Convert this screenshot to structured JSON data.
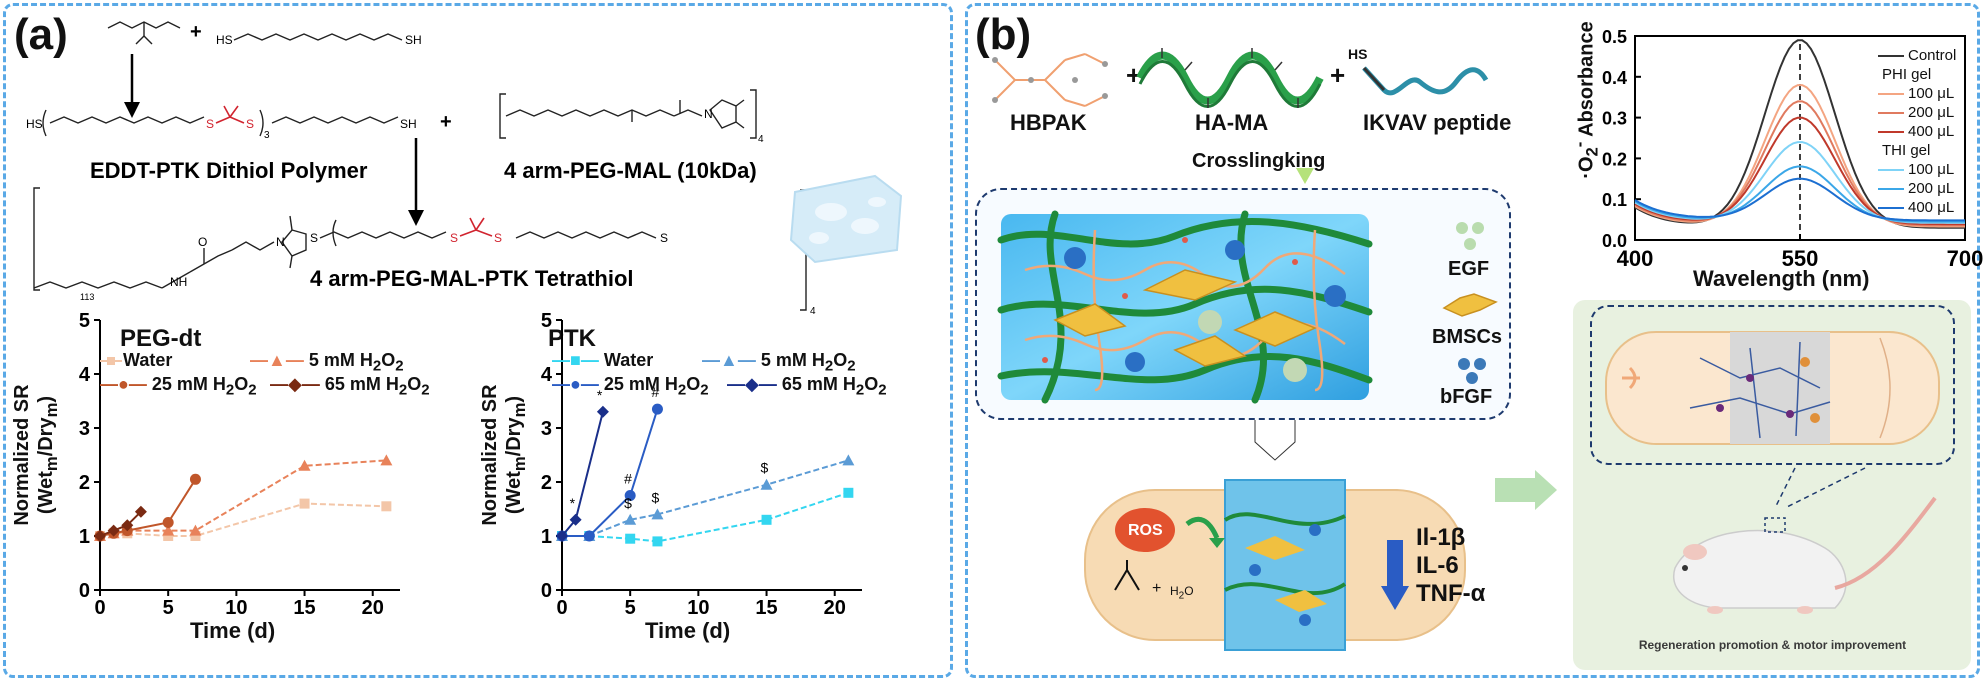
{
  "panel_a": {
    "label": "(a)",
    "chem": {
      "sh": "SH",
      "hs": "HS",
      "plus": "+",
      "s": "S",
      "o": "O",
      "n": "N",
      "nh": "NH",
      "sub3": "3",
      "sub4": "4",
      "sub113": "113",
      "polymer_label": "EDDT-PTK Dithiol Polymer",
      "peg_mal_label": "4 arm-PEG-MAL (10kDa)",
      "product_label": "4 arm-PEG-MAL-PTK Tetrathiol"
    },
    "chart_left": {
      "title": "PEG-dt",
      "ylabel_line1": "Normalized SR",
      "ylabel_line2": "(Wet",
      "ylabel_sub1": "m",
      "ylabel_mid": "/Dry",
      "ylabel_sub2": "m",
      "ylabel_end": ")",
      "xlabel": "Time (d)",
      "legend": {
        "water": "Water",
        "h5": "5 mM H",
        "h25": "25 mM H",
        "h65": "65 mM H",
        "sub2": "2",
        "o2": "O",
        "sub2b": "2"
      }
    },
    "chart_right": {
      "title": "PTK",
      "ylabel_line1": "Normalized SR",
      "ylabel_line2": "(Wet",
      "ylabel_sub1": "m",
      "ylabel_mid": "/Dry",
      "ylabel_sub2": "m",
      "ylabel_end": ")",
      "xlabel": "Time (d)",
      "legend": {
        "water": "Water",
        "h5": "5 mM H",
        "h25": "25 mM H",
        "h65": "65 mM H",
        "sub2": "2",
        "o2": "O",
        "sub2b": "2"
      },
      "annotations": {
        "star": "*",
        "hash": "#",
        "dollar": "$"
      }
    }
  },
  "panel_b": {
    "label": "(b)",
    "hbpak": "HBPAK",
    "hama": "HA-MA",
    "plus": "+",
    "hs": "HS",
    "ikvav": "IKVAV peptide",
    "crosslinking": "Crosslingking",
    "legend_egf": "EGF",
    "legend_bmsc": "BMSCs",
    "legend_bfgf": "bFGF",
    "ros": "ROS",
    "il1b": "Il-1β",
    "il6": "IL-6",
    "tnfa": "TNF-α",
    "h2o": "H",
    "h2o_sub": "2",
    "h2o_o": "O",
    "regen_caption": "Regeneration promotion & motor improvement",
    "abs_chart": {
      "ylabel": "·O",
      "ylabel_sub": "2",
      "ylabel_sup": "-",
      "ylabel_rest": " Absorbance",
      "xlabel": "Wavelength (nm)",
      "legend_control": "Control",
      "legend_phi": "PHI gel",
      "legend_thi": "THI gel",
      "l100": "100 μL",
      "l200": "200 μL",
      "l400": "400 μL"
    }
  },
  "chart_data": [
    {
      "type": "line",
      "title": "PEG-dt",
      "xlabel": "Time (d)",
      "ylabel": "Normalized SR (Wetm/Drym)",
      "xlim": [
        0,
        22
      ],
      "ylim": [
        0,
        5
      ],
      "xticks": [
        0,
        5,
        10,
        15,
        20
      ],
      "yticks": [
        0,
        1,
        2,
        3,
        4,
        5
      ],
      "series": [
        {
          "name": "Water",
          "color": "#f3c6a8",
          "x": [
            0,
            1,
            2,
            5,
            7,
            15,
            21
          ],
          "y": [
            1.0,
            1.05,
            1.05,
            1.0,
            1.0,
            1.6,
            1.55
          ]
        },
        {
          "name": "5 mM H2O2",
          "color": "#e8825a",
          "x": [
            0,
            1,
            2,
            5,
            7,
            15,
            21
          ],
          "y": [
            1.0,
            1.05,
            1.1,
            1.1,
            1.1,
            2.3,
            2.4
          ]
        },
        {
          "name": "25 mM H2O2",
          "color": "#c0562a",
          "x": [
            0,
            1,
            2,
            5,
            7
          ],
          "y": [
            1.0,
            1.05,
            1.1,
            1.25,
            2.05
          ]
        },
        {
          "name": "65 mM H2O2",
          "color": "#7a2a12",
          "x": [
            0,
            1,
            2,
            3
          ],
          "y": [
            1.0,
            1.1,
            1.2,
            1.45
          ]
        }
      ]
    },
    {
      "type": "line",
      "title": "PTK",
      "xlabel": "Time (d)",
      "ylabel": "Normalized SR (Wetm/Drym)",
      "xlim": [
        0,
        22
      ],
      "ylim": [
        0,
        5
      ],
      "xticks": [
        0,
        5,
        10,
        15,
        20
      ],
      "yticks": [
        0,
        1,
        2,
        3,
        4,
        5
      ],
      "series": [
        {
          "name": "Water",
          "color": "#33d6f0",
          "x": [
            0,
            2,
            5,
            7,
            15,
            21
          ],
          "y": [
            1.0,
            1.0,
            0.95,
            0.9,
            1.3,
            1.8
          ]
        },
        {
          "name": "5 mM H2O2",
          "color": "#5b9bd5",
          "x": [
            0,
            2,
            5,
            7,
            15,
            21
          ],
          "y": [
            1.0,
            1.0,
            1.3,
            1.4,
            1.95,
            2.4
          ]
        },
        {
          "name": "25 mM H2O2",
          "color": "#2a5cc4",
          "x": [
            0,
            2,
            5,
            7
          ],
          "y": [
            1.0,
            1.0,
            1.75,
            3.35
          ]
        },
        {
          "name": "65 mM H2O2",
          "color": "#1a2f8a",
          "x": [
            0,
            1,
            3
          ],
          "y": [
            1.0,
            1.3,
            3.3
          ]
        }
      ]
    },
    {
      "type": "line",
      "xlabel": "Wavelength (nm)",
      "ylabel": "·O2- Absorbance",
      "xlim": [
        400,
        700
      ],
      "ylim": [
        0,
        0.5
      ],
      "xticks": [
        400,
        550,
        700
      ],
      "yticks": [
        0.0,
        0.1,
        0.2,
        0.3,
        0.4,
        0.5
      ],
      "peak_x": 550,
      "peak_heights": [
        0.49,
        0.38,
        0.34,
        0.3,
        0.24,
        0.18,
        0.15
      ],
      "series": [
        {
          "name": "Control",
          "color": "#333333",
          "peak": 0.49
        },
        {
          "name": "PHI gel 100 μL",
          "color": "#f4a582",
          "peak": 0.38
        },
        {
          "name": "PHI gel 200 μL",
          "color": "#e07a5f",
          "peak": 0.34
        },
        {
          "name": "PHI gel 400 μL",
          "color": "#c0392b",
          "peak": 0.3
        },
        {
          "name": "THI gel 100 μL",
          "color": "#7fd3f7",
          "peak": 0.24
        },
        {
          "name": "THI gel 200 μL",
          "color": "#3ba7e8",
          "peak": 0.18
        },
        {
          "name": "THI gel 400 μL",
          "color": "#1c6fd1",
          "peak": 0.15
        }
      ]
    }
  ]
}
